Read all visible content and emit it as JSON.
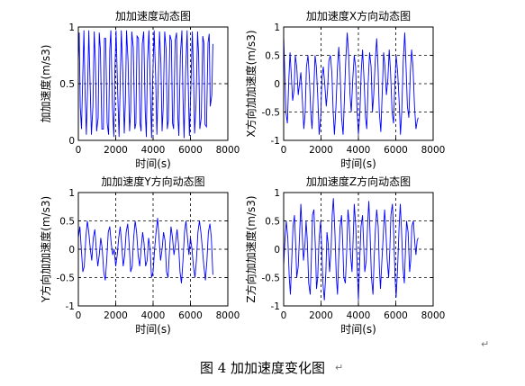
{
  "caption": "图 4  加加速度变化图",
  "paragraph_mark": "↵",
  "chart_data": [
    {
      "type": "line",
      "title": "加加速度动态图",
      "xlabel": "时间(s)",
      "ylabel": "加加速度(m/s3)",
      "xlim": [
        0,
        8000
      ],
      "ylim": [
        0,
        1
      ],
      "xticks": [
        0,
        2000,
        4000,
        6000,
        8000
      ],
      "yticks": [
        0,
        0.5,
        1
      ],
      "grid": true,
      "line_color": "#0000ff",
      "series": [
        {
          "x": [
            0,
            50,
            100,
            170,
            240,
            300,
            360,
            430,
            500,
            560,
            620,
            700,
            780,
            850,
            910,
            980,
            1060,
            1120,
            1180,
            1260,
            1340,
            1400,
            1460,
            1540,
            1620,
            1680,
            1740,
            1820,
            1900,
            1960,
            2020,
            2100,
            2180,
            2240,
            2300,
            2380,
            2460,
            2520,
            2580,
            2660,
            2740,
            2800,
            2860,
            2940,
            3020,
            3080,
            3140,
            3220,
            3300,
            3360,
            3420,
            3500,
            3580,
            3640,
            3700,
            3780,
            3860,
            3920,
            3980,
            4060,
            4140,
            4200,
            4260,
            4340,
            4420,
            4480,
            4540,
            4620,
            4700,
            4760,
            4820,
            4900,
            4980,
            5040,
            5100,
            5180,
            5260,
            5320,
            5380,
            5460,
            5540,
            5600,
            5660,
            5740,
            5820,
            5880,
            5940,
            6020,
            6100,
            6160,
            6220,
            6300,
            6380,
            6440,
            6500,
            6580,
            6660,
            6720,
            6780,
            6860,
            6940,
            7000,
            7060,
            7140,
            7200
          ],
          "y": [
            0.7,
            0.95,
            0.3,
            0.1,
            0.6,
            0.97,
            0.4,
            0.05,
            0.5,
            0.97,
            0.55,
            0.05,
            0.3,
            0.96,
            0.7,
            0.08,
            0.2,
            0.95,
            0.8,
            0.1,
            0.1,
            0.9,
            0.9,
            0.15,
            0.05,
            0.8,
            0.97,
            0.3,
            0.03,
            0.65,
            0.97,
            0.45,
            0.03,
            0.5,
            0.97,
            0.6,
            0.06,
            0.35,
            0.97,
            0.7,
            0.08,
            0.25,
            0.96,
            0.82,
            0.1,
            0.15,
            0.92,
            0.9,
            0.15,
            0.08,
            0.85,
            0.96,
            0.25,
            0.03,
            0.7,
            0.97,
            0.4,
            0.02,
            0.55,
            0.97,
            0.55,
            0.05,
            0.4,
            0.96,
            0.68,
            0.08,
            0.28,
            0.96,
            0.8,
            0.1,
            0.18,
            0.93,
            0.88,
            0.15,
            0.1,
            0.88,
            0.95,
            0.22,
            0.04,
            0.75,
            0.97,
            0.38,
            0.02,
            0.6,
            0.97,
            0.5,
            0.04,
            0.45,
            0.96,
            0.62,
            0.06,
            0.32,
            0.96,
            0.75,
            0.1,
            0.2,
            0.92,
            0.86,
            0.14,
            0.12,
            0.86,
            0.94,
            0.3,
            0.4,
            0.85
          ]
        }
      ]
    },
    {
      "type": "line",
      "title": "加加速度X方向动态图",
      "xlabel": "时间(s)",
      "ylabel": "X方向加加速度(m/s3)",
      "xlim": [
        0,
        8000
      ],
      "ylim": [
        -1,
        1
      ],
      "xticks": [
        0,
        2000,
        4000,
        6000,
        8000
      ],
      "yticks": [
        -1,
        -0.5,
        0,
        0.5,
        1
      ],
      "grid": true,
      "line_color": "#0000ff",
      "series": [
        {
          "x": [
            0,
            60,
            120,
            200,
            280,
            340,
            400,
            480,
            560,
            620,
            700,
            780,
            850,
            920,
            1000,
            1080,
            1150,
            1220,
            1300,
            1380,
            1450,
            1520,
            1600,
            1680,
            1750,
            1820,
            1900,
            1980,
            2050,
            2120,
            2200,
            2280,
            2350,
            2420,
            2500,
            2580,
            2650,
            2720,
            2800,
            2880,
            2950,
            3020,
            3100,
            3180,
            3250,
            3320,
            3400,
            3480,
            3550,
            3620,
            3700,
            3780,
            3850,
            3920,
            4000,
            4080,
            4150,
            4220,
            4300,
            4380,
            4450,
            4520,
            4600,
            4680,
            4750,
            4820,
            4900,
            4980,
            5050,
            5120,
            5200,
            5280,
            5350,
            5420,
            5500,
            5580,
            5650,
            5720,
            5800,
            5880,
            5950,
            6020,
            6100,
            6180,
            6250,
            6320,
            6400,
            6480,
            6550,
            6620,
            6700,
            6780,
            6850,
            6920,
            7000,
            7080,
            7150,
            7200
          ],
          "y": [
            0.85,
            0.2,
            -0.5,
            -0.7,
            0.1,
            0.55,
            0.2,
            -0.3,
            -0.1,
            0.5,
            0.3,
            -0.2,
            0.0,
            0.2,
            -0.3,
            -0.8,
            -0.5,
            0.3,
            0.5,
            0.1,
            -0.5,
            -0.8,
            -0.2,
            0.5,
            0.3,
            -0.2,
            -0.9,
            -0.6,
            0.1,
            0.3,
            0.0,
            -0.4,
            -0.1,
            0.4,
            0.5,
            0.2,
            -0.5,
            -0.9,
            -0.4,
            0.3,
            0.65,
            0.2,
            -0.6,
            -0.9,
            -0.3,
            0.4,
            0.9,
            0.5,
            -0.2,
            -0.5,
            0.1,
            0.5,
            0.3,
            -0.4,
            -0.9,
            -0.5,
            0.2,
            0.6,
            0.1,
            -0.6,
            -0.8,
            0.0,
            0.55,
            0.3,
            -0.5,
            -0.2,
            0.4,
            0.8,
            0.3,
            -0.5,
            -0.85,
            -0.1,
            0.55,
            0.3,
            -0.2,
            0.1,
            0.6,
            0.2,
            -0.5,
            -0.7,
            0.0,
            0.5,
            0.2,
            -0.3,
            -0.9,
            -0.5,
            0.4,
            0.9,
            0.3,
            -0.4,
            -0.6,
            0.2,
            0.6,
            0.3,
            -0.4,
            -0.8,
            -0.65,
            -0.6
          ]
        }
      ]
    },
    {
      "type": "line",
      "title": "加加速度Y方向动态图",
      "xlabel": "时间(s)",
      "ylabel": "Y方向加加速度(m/s3)",
      "xlim": [
        0,
        8000
      ],
      "ylim": [
        -1,
        1
      ],
      "xticks": [
        0,
        2000,
        4000,
        6000,
        8000
      ],
      "yticks": [
        -1,
        -0.5,
        0,
        0.5,
        1
      ],
      "grid": true,
      "line_color": "#0000ff",
      "series": [
        {
          "x": [
            0,
            80,
            160,
            240,
            320,
            400,
            480,
            560,
            640,
            720,
            800,
            880,
            960,
            1040,
            1120,
            1200,
            1280,
            1360,
            1440,
            1520,
            1600,
            1680,
            1760,
            1840,
            1920,
            2000,
            2080,
            2160,
            2240,
            2320,
            2400,
            2480,
            2560,
            2640,
            2720,
            2800,
            2880,
            2960,
            3040,
            3120,
            3200,
            3280,
            3360,
            3440,
            3520,
            3600,
            3680,
            3760,
            3840,
            3920,
            4000,
            4080,
            4160,
            4240,
            4320,
            4400,
            4480,
            4560,
            4640,
            4720,
            4800,
            4880,
            4960,
            5040,
            5120,
            5200,
            5280,
            5360,
            5440,
            5520,
            5600,
            5680,
            5760,
            5840,
            5920,
            6000,
            6080,
            6160,
            6240,
            6320,
            6400,
            6480,
            6560,
            6640,
            6720,
            6800,
            6880,
            6960,
            7040,
            7120,
            7200
          ],
          "y": [
            0.2,
            0.4,
            0.0,
            -0.4,
            -0.3,
            0.2,
            0.5,
            0.3,
            0.0,
            -0.2,
            0.2,
            0.35,
            0.0,
            -0.3,
            -0.1,
            0.2,
            0.0,
            -0.4,
            -0.55,
            -0.2,
            0.3,
            0.4,
            0.1,
            -0.1,
            0.0,
            -0.3,
            -0.1,
            0.2,
            0.4,
            0.1,
            -0.3,
            -0.1,
            0.3,
            0.45,
            0.1,
            -0.4,
            -0.3,
            0.2,
            0.5,
            0.3,
            -0.1,
            -0.3,
            0.0,
            0.3,
            0.1,
            -0.3,
            -0.2,
            0.2,
            0.0,
            -0.5,
            -0.4,
            0.0,
            0.3,
            0.55,
            0.2,
            -0.2,
            0.0,
            0.3,
            0.15,
            -0.4,
            -0.5,
            0.0,
            0.4,
            0.2,
            -0.1,
            0.1,
            0.35,
            0.1,
            -0.4,
            -0.6,
            -0.2,
            0.3,
            0.5,
            0.2,
            -0.1,
            0.2,
            0.0,
            -0.3,
            -0.5,
            -0.2,
            0.3,
            0.5,
            0.3,
            0.0,
            -0.3,
            -0.55,
            -0.2,
            0.3,
            0.45,
            0.2,
            -0.45
          ]
        }
      ]
    },
    {
      "type": "line",
      "title": "加加速度Z方向动态图",
      "xlabel": "时间(s)",
      "ylabel": "Z方向加加速度(m/s3)",
      "xlim": [
        0,
        8000
      ],
      "ylim": [
        -1,
        1
      ],
      "xticks": [
        0,
        2000,
        4000,
        6000,
        8000
      ],
      "yticks": [
        -1,
        -0.5,
        0,
        0.5,
        1
      ],
      "grid": true,
      "line_color": "#0000ff",
      "series": [
        {
          "x": [
            0,
            60,
            140,
            220,
            300,
            360,
            420,
            500,
            580,
            640,
            700,
            780,
            860,
            920,
            980,
            1060,
            1140,
            1200,
            1260,
            1340,
            1420,
            1480,
            1540,
            1620,
            1700,
            1760,
            1820,
            1900,
            1980,
            2040,
            2100,
            2180,
            2260,
            2320,
            2380,
            2460,
            2540,
            2600,
            2660,
            2740,
            2820,
            2880,
            2940,
            3020,
            3100,
            3160,
            3220,
            3300,
            3380,
            3440,
            3500,
            3580,
            3660,
            3720,
            3780,
            3860,
            3940,
            4000,
            4060,
            4140,
            4220,
            4280,
            4340,
            4420,
            4500,
            4560,
            4620,
            4700,
            4780,
            4840,
            4900,
            4980,
            5060,
            5120,
            5180,
            5260,
            5340,
            5400,
            5460,
            5540,
            5620,
            5680,
            5740,
            5820,
            5900,
            5960,
            6020,
            6100,
            6180,
            6240,
            6300,
            6380,
            6460,
            6520,
            6580,
            6660,
            6740,
            6800,
            6860,
            6940,
            7020,
            7080,
            7140,
            7200
          ],
          "y": [
            -0.3,
            0.1,
            0.5,
            0.2,
            -0.5,
            -0.8,
            -0.3,
            0.4,
            0.6,
            0.1,
            -0.5,
            -0.3,
            0.3,
            0.8,
            0.4,
            -0.2,
            0.1,
            0.5,
            0.2,
            -0.6,
            -0.8,
            -0.2,
            0.6,
            0.7,
            0.0,
            -0.7,
            -0.5,
            0.2,
            0.5,
            0.0,
            -0.6,
            -0.9,
            -0.4,
            0.3,
            0.1,
            -0.4,
            0.0,
            0.6,
            0.9,
            0.3,
            -0.5,
            -0.8,
            -0.2,
            0.4,
            0.6,
            0.1,
            -0.5,
            -0.6,
            0.0,
            0.7,
            0.5,
            -0.1,
            -0.4,
            0.2,
            0.8,
            0.4,
            -0.4,
            -0.9,
            -0.3,
            0.4,
            0.6,
            0.1,
            -0.4,
            -0.2,
            0.5,
            0.85,
            0.3,
            -0.5,
            -0.8,
            -0.2,
            0.3,
            0.7,
            0.4,
            -0.3,
            -0.7,
            -0.2,
            0.3,
            0.7,
            0.4,
            -0.2,
            -0.5,
            0.0,
            0.6,
            0.8,
            0.2,
            -0.5,
            -0.85,
            -0.3,
            0.4,
            0.8,
            0.4,
            -0.3,
            -0.6,
            0.0,
            0.5,
            0.3,
            -0.4,
            -0.2,
            0.4,
            0.5,
            0.1,
            -0.1,
            0.15,
            0.2
          ]
        }
      ]
    }
  ]
}
